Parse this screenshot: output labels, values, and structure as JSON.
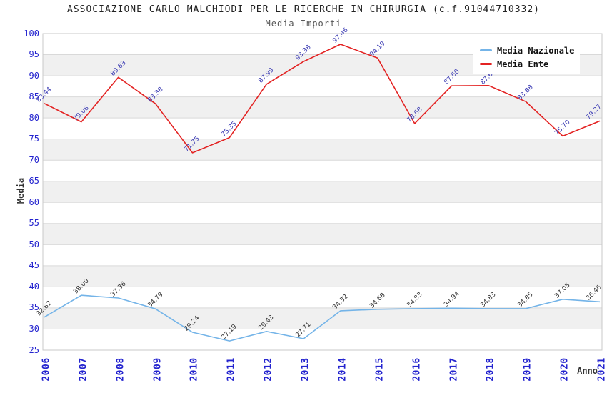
{
  "chart_data": {
    "type": "line",
    "title": "ASSOCIAZIONE CARLO MALCHIODI PER LE RICERCHE IN CHIRURGIA (c.f.91044710332)",
    "subtitle": "Media Importi",
    "xlabel": "Anno",
    "ylabel": "Media",
    "categories": [
      "2006",
      "2007",
      "2008",
      "2009",
      "2010",
      "2011",
      "2012",
      "2013",
      "2014",
      "2015",
      "2016",
      "2017",
      "2018",
      "2019",
      "2020",
      "2021"
    ],
    "ylim": [
      25,
      100
    ],
    "ytick_step": 5,
    "yticks": [
      100,
      95,
      90,
      85,
      80,
      75,
      70,
      65,
      60,
      55,
      50,
      45,
      40,
      35,
      30,
      25
    ],
    "grid": "horizontal gridlines with alternating shaded bands",
    "legend_position": "top-right",
    "series": [
      {
        "name": "Media Nazionale",
        "color": "#74b4e8",
        "label_color": "#333333",
        "values": [
          32.82,
          38.0,
          37.36,
          34.79,
          29.24,
          27.19,
          29.43,
          27.71,
          34.32,
          34.68,
          34.83,
          34.94,
          34.83,
          34.85,
          37.05,
          36.46
        ]
      },
      {
        "name": "Media Ente",
        "color": "#e32222",
        "label_color": "#3c3cb4",
        "values": [
          83.44,
          79.08,
          89.63,
          83.38,
          71.75,
          75.35,
          87.99,
          93.38,
          97.46,
          94.19,
          78.68,
          87.6,
          87.68,
          83.88,
          75.7,
          79.27
        ]
      }
    ],
    "colors": {
      "axis_tick_text": "#2424cf",
      "band_shade": "#f0f0f0",
      "gridline": "#d9d9d9",
      "plot_border": "#c9c9c9",
      "title_text": "#222222",
      "subtitle_text": "#555555"
    }
  }
}
